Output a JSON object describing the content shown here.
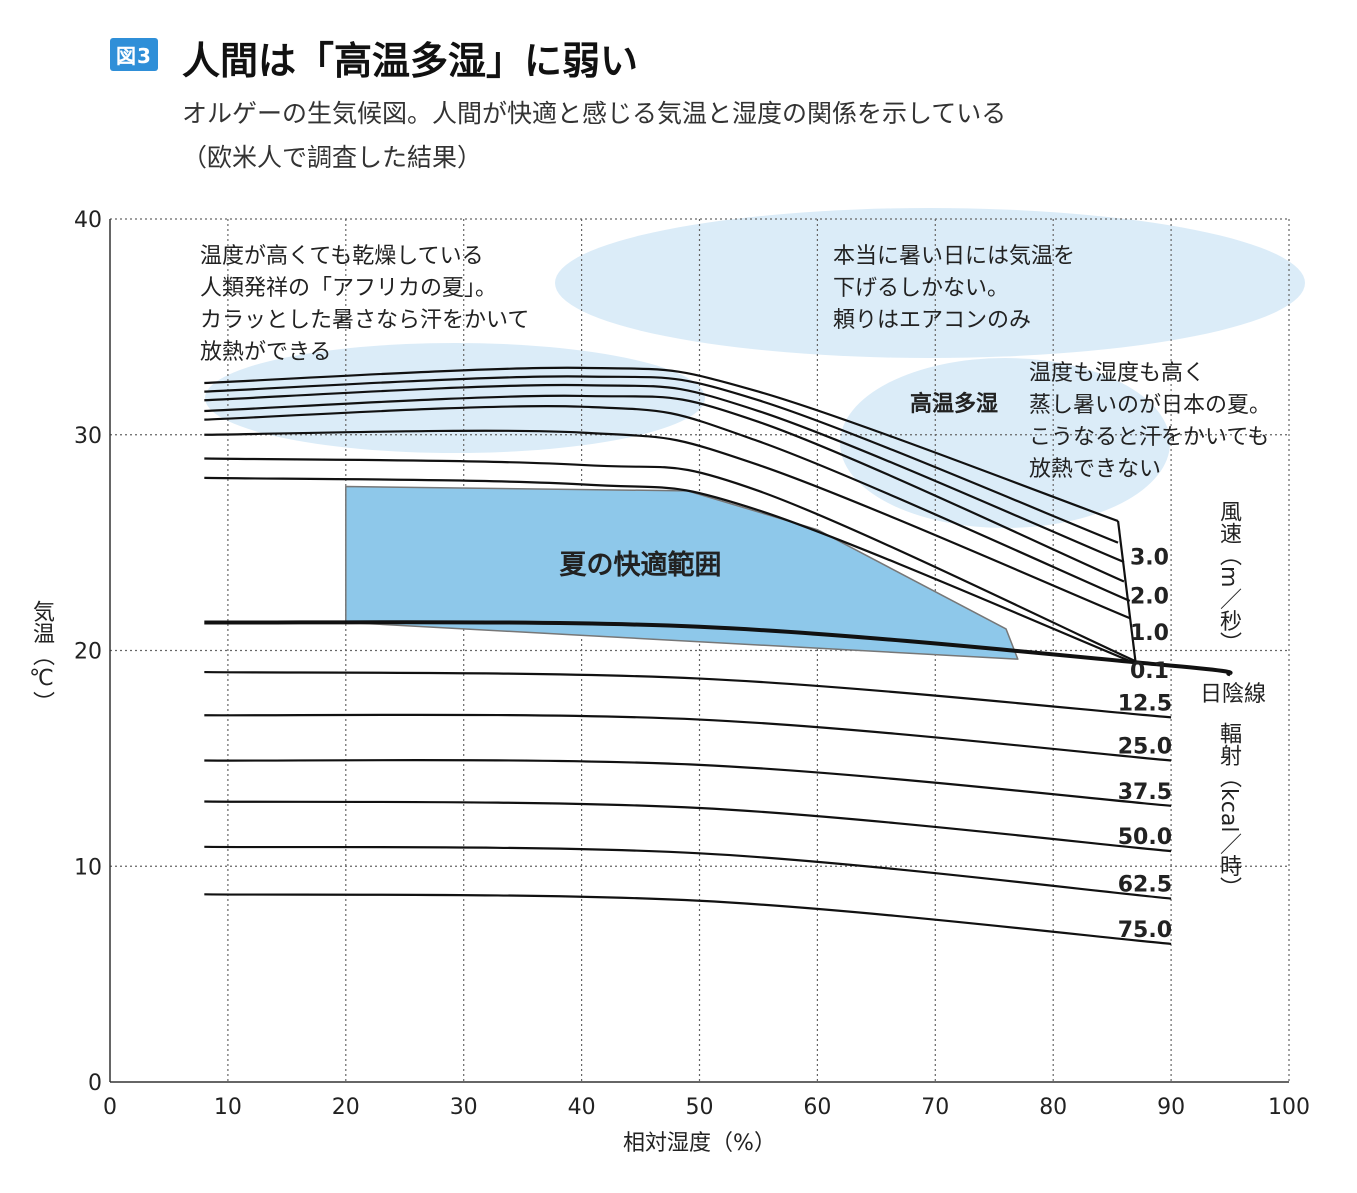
{
  "header": {
    "badge": "図3",
    "title": "人間は「高温多湿」に弱い",
    "subtitle_line1": "オルゲーの生気候図。人間が快適と感じる気温と湿度の関係を示している",
    "subtitle_line2": "（欧米人で調査した結果）"
  },
  "chart_data": {
    "type": "line",
    "xlabel": "相対湿度（%）",
    "ylabel": "気温（℃）",
    "xlim": [
      0,
      100
    ],
    "ylim": [
      0,
      40
    ],
    "xticks": [
      "0",
      "10",
      "20",
      "30",
      "40",
      "50",
      "60",
      "70",
      "80",
      "90",
      "100"
    ],
    "yticks": [
      "0",
      "10",
      "20",
      "30",
      "40"
    ],
    "grid": true,
    "shade_line": {
      "name": "日陰線",
      "x": [
        8,
        50,
        90,
        95
      ],
      "y": [
        21.3,
        21.1,
        19.3,
        18.9
      ]
    },
    "wind_group_label": "風速（m／秒）",
    "wind_series": [
      {
        "name": "0.1",
        "x": [
          8,
          40,
          55,
          87
        ],
        "y": [
          28.0,
          27.7,
          26.5,
          19.4
        ]
      },
      {
        "name": "",
        "x": [
          8,
          40,
          55,
          87
        ],
        "y": [
          28.9,
          28.6,
          27.4,
          19.5
        ]
      },
      {
        "name": "1.0",
        "x": [
          8,
          40,
          55,
          86.5
        ],
        "y": [
          30.0,
          30.1,
          28.6,
          21.5
        ]
      },
      {
        "name": "",
        "x": [
          8,
          40,
          55,
          86.5
        ],
        "y": [
          30.7,
          31.3,
          29.7,
          22.3
        ]
      },
      {
        "name": "2.0",
        "x": [
          8,
          40,
          55,
          86
        ],
        "y": [
          31.1,
          31.8,
          30.6,
          23.2
        ]
      },
      {
        "name": "",
        "x": [
          8,
          40,
          55,
          86
        ],
        "y": [
          31.6,
          32.3,
          31.1,
          24.1
        ]
      },
      {
        "name": "3.0",
        "x": [
          8,
          40,
          55,
          85.5
        ],
        "y": [
          32.0,
          32.7,
          31.6,
          25.0
        ]
      },
      {
        "name": "",
        "x": [
          8,
          40,
          55,
          85.5
        ],
        "y": [
          32.4,
          33.1,
          32.0,
          26.0
        ]
      }
    ],
    "radiation_group_label": "輻射（kcal／時）",
    "radiation_series": [
      {
        "name": "12.5",
        "x": [
          8,
          50,
          90
        ],
        "y": [
          19.0,
          18.7,
          16.9
        ]
      },
      {
        "name": "25.0",
        "x": [
          8,
          50,
          90
        ],
        "y": [
          17.0,
          16.8,
          14.9
        ]
      },
      {
        "name": "37.5",
        "x": [
          8,
          50,
          90
        ],
        "y": [
          14.9,
          14.7,
          12.8
        ]
      },
      {
        "name": "50.0",
        "x": [
          8,
          50,
          90
        ],
        "y": [
          13.0,
          12.7,
          10.7
        ]
      },
      {
        "name": "62.5",
        "x": [
          8,
          50,
          90
        ],
        "y": [
          10.9,
          10.6,
          8.5
        ]
      },
      {
        "name": "75.0",
        "x": [
          8,
          50,
          90
        ],
        "y": [
          8.7,
          8.4,
          6.4
        ]
      }
    ],
    "comfort_zone": {
      "label": "夏の快適範囲",
      "x": [
        20,
        49,
        60,
        76,
        77,
        20
      ],
      "y": [
        27.6,
        27.4,
        25.6,
        21.0,
        19.6,
        21.3
      ],
      "color": "#8ec8ea"
    },
    "annotations": {
      "africa": [
        "温度が高くても乾燥している",
        "人類発祥の「アフリカの夏」。",
        "カラッとした暑さなら汗をかいて",
        "放熱ができる"
      ],
      "hot_day": [
        "本当に暑い日には気温を",
        "下げるしかない。",
        "頼りはエアコンのみ"
      ],
      "japan_label": "高温多湿",
      "japan": [
        "温度も湿度も高く",
        "蒸し暑いのが日本の夏。",
        "こうなると汗をかいても",
        "放熱できない"
      ]
    },
    "colors": {
      "line": "#111111",
      "grid": "#666666",
      "cloud": "#cfe6f5",
      "comfort": "#8ec8ea"
    }
  }
}
